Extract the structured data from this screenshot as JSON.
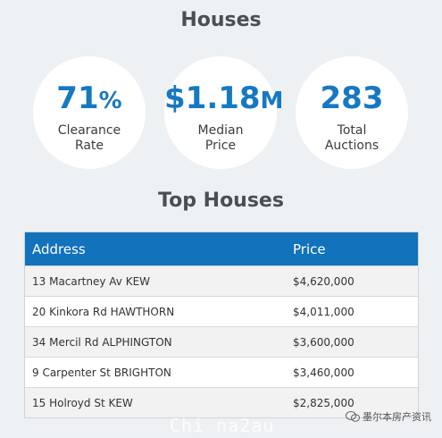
{
  "header": {
    "title": "Houses"
  },
  "stats": [
    {
      "value": "71",
      "suffix": "%",
      "label": "Clearance\nRate"
    },
    {
      "value": "$1.18",
      "suffix": "M",
      "label": "Median\nPrice"
    },
    {
      "value": "283",
      "suffix": "",
      "label": "Total\nAuctions"
    }
  ],
  "top_section": {
    "title": "Top Houses"
  },
  "table": {
    "columns": [
      "Address",
      "Price"
    ],
    "rows": [
      {
        "address": "13 Macartney Av KEW",
        "price": "$4,620,000"
      },
      {
        "address": "20 Kinkora Rd HAWTHORN",
        "price": "$4,011,000"
      },
      {
        "address": "34 Mercil Rd ALPHINGTON",
        "price": "$3,600,000"
      },
      {
        "address": "9 Carpenter St BRIGHTON",
        "price": "$3,460,000"
      },
      {
        "address": "15 Holroyd St KEW",
        "price": "$2,825,000"
      }
    ]
  },
  "watermark": {
    "text": "Chi na2au",
    "brand": "墨尔本房产资讯"
  },
  "colors": {
    "accent": "#1272bc",
    "value_blue": "#1778c2",
    "background": "#eef1f4"
  }
}
